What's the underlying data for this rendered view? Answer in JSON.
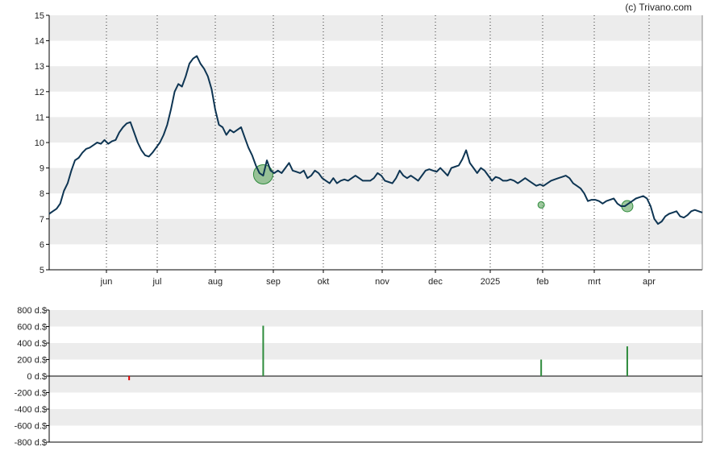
{
  "credit": "(c) Trivano.com",
  "colors": {
    "price_line": "#0e3553",
    "band": "#ececec",
    "axis": "#000000",
    "event": "#2e8b3c",
    "event_fill": "#6aaa6a",
    "negative": "#e00000"
  },
  "chart_data": [
    {
      "type": "line",
      "name": "price",
      "ylim": [
        5,
        15
      ],
      "y_ticks": [
        5,
        6,
        7,
        8,
        9,
        10,
        11,
        12,
        13,
        14,
        15
      ],
      "x_labels": [
        "jun",
        "jul",
        "aug",
        "sep",
        "okt",
        "nov",
        "dec",
        "2025",
        "feb",
        "mrt",
        "apr"
      ],
      "grid": "horizontal bands + dotted vertical month lines",
      "points": [
        [
          0,
          7.2
        ],
        [
          3,
          7.3
        ],
        [
          6,
          7.4
        ],
        [
          9,
          7.6
        ],
        [
          12,
          8.1
        ],
        [
          15,
          8.4
        ],
        [
          18,
          8.9
        ],
        [
          21,
          9.3
        ],
        [
          24,
          9.4
        ],
        [
          27,
          9.6
        ],
        [
          30,
          9.75
        ],
        [
          33,
          9.8
        ],
        [
          36,
          9.9
        ],
        [
          39,
          10
        ],
        [
          42,
          9.95
        ],
        [
          45,
          10.1
        ],
        [
          48,
          9.95
        ],
        [
          51,
          10.05
        ],
        [
          54,
          10.1
        ],
        [
          57,
          10.4
        ],
        [
          60,
          10.6
        ],
        [
          63,
          10.75
        ],
        [
          66,
          10.8
        ],
        [
          69,
          10.4
        ],
        [
          72,
          10.0
        ],
        [
          75,
          9.7
        ],
        [
          78,
          9.5
        ],
        [
          81,
          9.45
        ],
        [
          84,
          9.6
        ],
        [
          87,
          9.8
        ],
        [
          90,
          10.0
        ],
        [
          93,
          10.3
        ],
        [
          96,
          10.7
        ],
        [
          99,
          11.3
        ],
        [
          102,
          12.0
        ],
        [
          105,
          12.3
        ],
        [
          108,
          12.2
        ],
        [
          111,
          12.6
        ],
        [
          114,
          13.1
        ],
        [
          117,
          13.3
        ],
        [
          120,
          13.4
        ],
        [
          123,
          13.1
        ],
        [
          126,
          12.9
        ],
        [
          129,
          12.6
        ],
        [
          132,
          12.1
        ],
        [
          135,
          11.3
        ],
        [
          138,
          10.7
        ],
        [
          141,
          10.6
        ],
        [
          144,
          10.3
        ],
        [
          147,
          10.5
        ],
        [
          150,
          10.4
        ],
        [
          153,
          10.5
        ],
        [
          156,
          10.6
        ],
        [
          159,
          10.2
        ],
        [
          162,
          9.8
        ],
        [
          165,
          9.5
        ],
        [
          168,
          9.1
        ],
        [
          171,
          8.8
        ],
        [
          174,
          8.7
        ],
        [
          177,
          9.3
        ],
        [
          180,
          8.9
        ],
        [
          183,
          8.8
        ],
        [
          186,
          8.9
        ],
        [
          189,
          8.8
        ],
        [
          192,
          9.0
        ],
        [
          195,
          9.2
        ],
        [
          198,
          8.9
        ],
        [
          201,
          8.85
        ],
        [
          204,
          8.8
        ],
        [
          207,
          8.9
        ],
        [
          210,
          8.6
        ],
        [
          213,
          8.7
        ],
        [
          216,
          8.9
        ],
        [
          219,
          8.8
        ],
        [
          222,
          8.6
        ],
        [
          225,
          8.5
        ],
        [
          228,
          8.4
        ],
        [
          231,
          8.6
        ],
        [
          234,
          8.4
        ],
        [
          237,
          8.5
        ],
        [
          240,
          8.55
        ],
        [
          243,
          8.5
        ],
        [
          246,
          8.6
        ],
        [
          249,
          8.7
        ],
        [
          252,
          8.6
        ],
        [
          255,
          8.5
        ],
        [
          258,
          8.5
        ],
        [
          261,
          8.5
        ],
        [
          264,
          8.6
        ],
        [
          267,
          8.8
        ],
        [
          270,
          8.7
        ],
        [
          273,
          8.5
        ],
        [
          276,
          8.45
        ],
        [
          279,
          8.4
        ],
        [
          282,
          8.6
        ],
        [
          285,
          8.9
        ],
        [
          288,
          8.7
        ],
        [
          291,
          8.6
        ],
        [
          294,
          8.7
        ],
        [
          297,
          8.6
        ],
        [
          300,
          8.5
        ],
        [
          303,
          8.7
        ],
        [
          306,
          8.9
        ],
        [
          309,
          8.95
        ],
        [
          312,
          8.9
        ],
        [
          315,
          8.85
        ],
        [
          318,
          9.0
        ],
        [
          321,
          8.85
        ],
        [
          324,
          8.7
        ],
        [
          327,
          9.0
        ],
        [
          330,
          9.05
        ],
        [
          333,
          9.1
        ],
        [
          336,
          9.35
        ],
        [
          339,
          9.7
        ],
        [
          342,
          9.2
        ],
        [
          345,
          9.0
        ],
        [
          348,
          8.8
        ],
        [
          351,
          9.0
        ],
        [
          354,
          8.9
        ],
        [
          357,
          8.7
        ],
        [
          360,
          8.5
        ],
        [
          363,
          8.65
        ],
        [
          366,
          8.6
        ],
        [
          369,
          8.5
        ],
        [
          372,
          8.5
        ],
        [
          375,
          8.55
        ],
        [
          378,
          8.5
        ],
        [
          381,
          8.4
        ],
        [
          384,
          8.5
        ],
        [
          387,
          8.6
        ],
        [
          390,
          8.5
        ],
        [
          393,
          8.4
        ],
        [
          396,
          8.3
        ],
        [
          399,
          8.35
        ],
        [
          402,
          8.3
        ],
        [
          405,
          8.4
        ],
        [
          408,
          8.5
        ],
        [
          411,
          8.55
        ],
        [
          414,
          8.6
        ],
        [
          417,
          8.65
        ],
        [
          420,
          8.7
        ],
        [
          423,
          8.6
        ],
        [
          426,
          8.4
        ],
        [
          429,
          8.3
        ],
        [
          432,
          8.2
        ],
        [
          435,
          8.0
        ],
        [
          438,
          7.7
        ],
        [
          441,
          7.75
        ],
        [
          444,
          7.75
        ],
        [
          447,
          7.7
        ],
        [
          450,
          7.6
        ],
        [
          453,
          7.7
        ],
        [
          456,
          7.75
        ],
        [
          459,
          7.8
        ],
        [
          462,
          7.6
        ],
        [
          465,
          7.5
        ],
        [
          468,
          7.5
        ],
        [
          471,
          7.6
        ],
        [
          474,
          7.7
        ],
        [
          477,
          7.8
        ],
        [
          480,
          7.85
        ],
        [
          483,
          7.9
        ],
        [
          486,
          7.8
        ],
        [
          489,
          7.5
        ],
        [
          492,
          7.0
        ],
        [
          495,
          6.8
        ],
        [
          498,
          6.9
        ],
        [
          501,
          7.1
        ],
        [
          504,
          7.2
        ],
        [
          507,
          7.25
        ],
        [
          510,
          7.3
        ],
        [
          513,
          7.1
        ],
        [
          516,
          7.05
        ],
        [
          519,
          7.15
        ],
        [
          522,
          7.3
        ],
        [
          525,
          7.35
        ],
        [
          528,
          7.3
        ],
        [
          531,
          7.25
        ]
      ],
      "events": [
        {
          "x": 174,
          "y": 8.75,
          "size": "large"
        },
        {
          "x": 400,
          "y": 7.55,
          "size": "small"
        },
        {
          "x": 470,
          "y": 7.5,
          "size": "medium"
        }
      ]
    },
    {
      "type": "bar",
      "name": "insider transactions",
      "ylim": [
        -800,
        800
      ],
      "y_ticks": [
        800,
        600,
        400,
        200,
        0,
        -200,
        -400,
        -600,
        -800
      ],
      "tick_labels": [
        "800 d.$",
        "600 d.$",
        "400 d.$",
        "200 d.$",
        "0 d.$",
        "-200 d.$",
        "-400 d.$",
        "-600 d.$",
        "-800 d.$"
      ],
      "bars": [
        {
          "x": 65,
          "value": -50
        },
        {
          "x": 174,
          "value": 610
        },
        {
          "x": 400,
          "value": 200
        },
        {
          "x": 470,
          "value": 360
        }
      ]
    }
  ]
}
